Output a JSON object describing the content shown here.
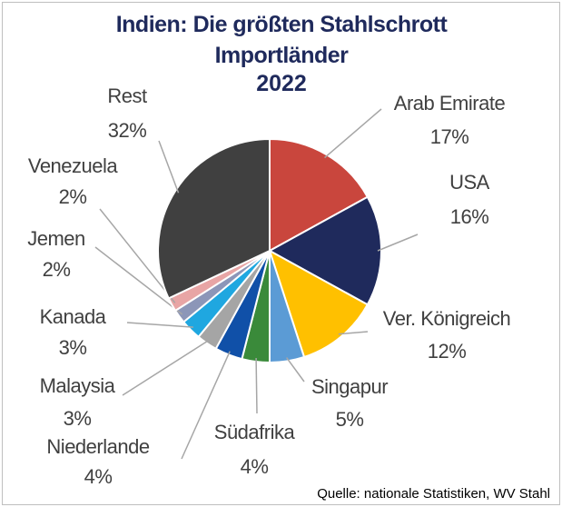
{
  "chart_data": {
    "type": "pie",
    "title": "Indien: Die größten Stahlschrott Importländer",
    "subtitle": "2022",
    "categories": [
      "Arab Emirate",
      "USA",
      "Ver. Königreich",
      "Singapur",
      "Südafrika",
      "Niederlande",
      "Malaysia",
      "Kanada",
      "Jemen",
      "Venezuela",
      "Rest"
    ],
    "values": [
      17,
      16,
      12,
      5,
      4,
      4,
      3,
      3,
      2,
      2,
      32
    ],
    "value_labels": [
      "17%",
      "16%",
      "12%",
      "5%",
      "4%",
      "4%",
      "3%",
      "3%",
      "2%",
      "2%",
      "32%"
    ],
    "colors": [
      "#c9463d",
      "#1f2a5c",
      "#ffc000",
      "#5b9bd5",
      "#3a8a3a",
      "#1050a8",
      "#a5a5a5",
      "#1fa7e0",
      "#8c96b8",
      "#e8a5a5",
      "#404040"
    ],
    "source": "Quelle: nationale Statistiken, WV Stahl"
  }
}
